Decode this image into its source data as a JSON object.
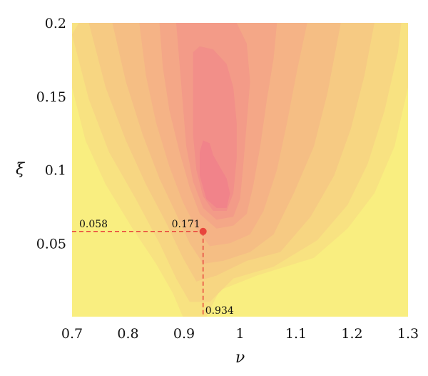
{
  "chart_data": {
    "type": "contour",
    "xlabel": "ν",
    "ylabel": "ξ",
    "xlim": [
      0.7,
      1.3
    ],
    "ylim": [
      0.0,
      0.2
    ],
    "xticks": [
      0.7,
      0.8,
      0.9,
      1.0,
      1.1,
      1.2,
      1.3
    ],
    "xtick_labels": [
      "0.7",
      "0.8",
      "0.9",
      "1",
      "1.1",
      "1.2",
      "1.3"
    ],
    "yticks": [
      0.05,
      0.1,
      0.15,
      0.2
    ],
    "ytick_labels": [
      "0.05",
      "0.1",
      "0.15",
      "0.2"
    ],
    "grid": false,
    "colors": {
      "low": "#f9ee80",
      "high": "#f1838a",
      "marker": "#e8453c"
    },
    "levels": 9,
    "peak": {
      "x": 0.934,
      "y": 0.058,
      "value": 0.171
    },
    "annotations": {
      "x_value": "0.934",
      "y_value": "0.058",
      "peak_value": "0.171"
    }
  }
}
